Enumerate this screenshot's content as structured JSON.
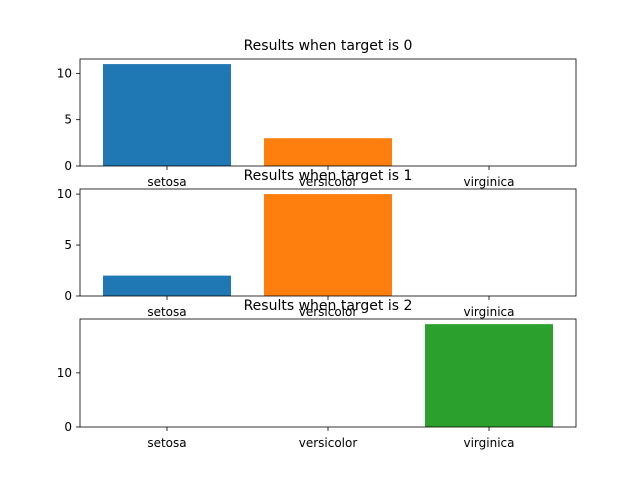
{
  "chart_data": [
    {
      "type": "bar",
      "title": "Results when target is 0",
      "categories": [
        "setosa",
        "versicolor",
        "virginica"
      ],
      "values": [
        11,
        3,
        0
      ],
      "colors": [
        "#1f77b4",
        "#ff7f0e",
        "#2ca02c"
      ],
      "yticks": [
        "0",
        "5",
        "10"
      ],
      "ylim": [
        0,
        11.55
      ],
      "xlabel": "",
      "ylabel": "",
      "grid": false,
      "legend": "none"
    },
    {
      "type": "bar",
      "title": "Results when target is 1",
      "categories": [
        "setosa",
        "versicolor",
        "virginica"
      ],
      "values": [
        2,
        10,
        0
      ],
      "colors": [
        "#1f77b4",
        "#ff7f0e",
        "#2ca02c"
      ],
      "yticks": [
        "0",
        "5",
        "10"
      ],
      "ylim": [
        0,
        10.5
      ],
      "xlabel": "",
      "ylabel": "",
      "grid": false,
      "legend": "none"
    },
    {
      "type": "bar",
      "title": "Results when target is 2",
      "categories": [
        "setosa",
        "versicolor",
        "virginica"
      ],
      "values": [
        0,
        0,
        19
      ],
      "colors": [
        "#1f77b4",
        "#ff7f0e",
        "#2ca02c"
      ],
      "yticks": [
        "0",
        "10"
      ],
      "ylim": [
        0,
        19.95
      ],
      "xlabel": "",
      "ylabel": "",
      "grid": false,
      "legend": "none"
    }
  ]
}
